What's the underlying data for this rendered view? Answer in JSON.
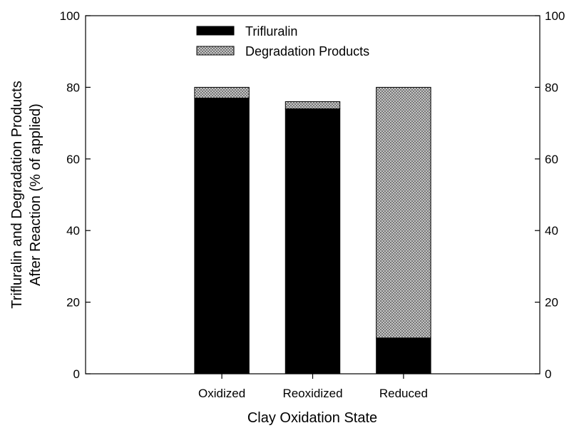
{
  "chart_data": {
    "type": "bar",
    "stacked": true,
    "categories": [
      "Oxidized",
      "Reoxidized",
      "Reduced"
    ],
    "series": [
      {
        "name": "Trifluralin",
        "values": [
          77,
          74,
          10
        ],
        "color": "#000000",
        "fill": "solid"
      },
      {
        "name": "Degradation Products",
        "values": [
          3,
          2,
          70
        ],
        "color": "#b0b0b0",
        "fill": "crosshatch"
      }
    ],
    "xlabel": "Clay Oxidation State",
    "ylabel": [
      "Trifluralin and Degradation Products",
      "After Reaction (% of applied)"
    ],
    "ylim": [
      0,
      100
    ],
    "yticks": [
      0,
      20,
      40,
      60,
      80,
      100
    ],
    "right_axis_mirrored": true,
    "grid": false,
    "legend_position": "top-center"
  }
}
